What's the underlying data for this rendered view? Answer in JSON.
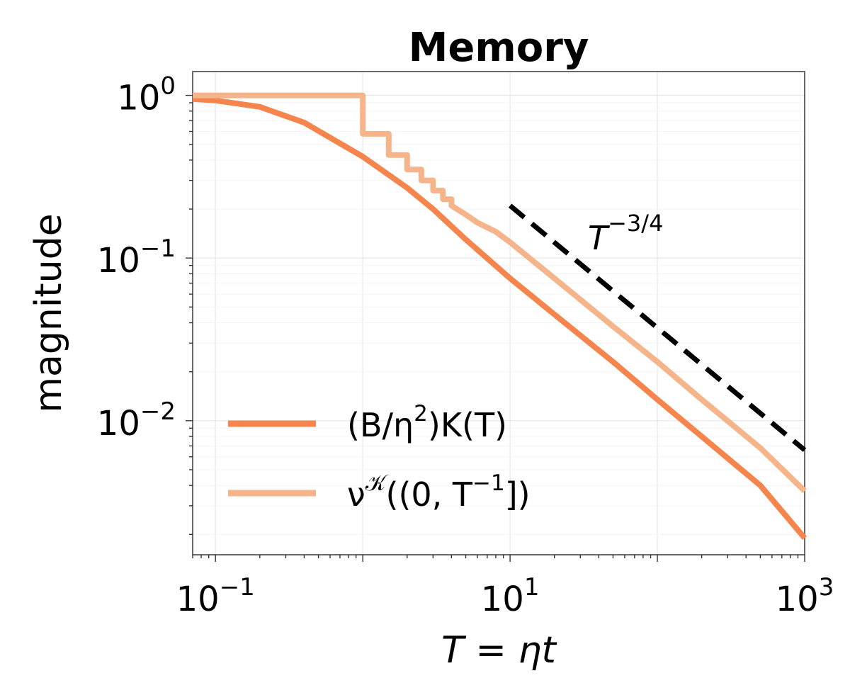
{
  "chart_data": {
    "type": "line",
    "title": "Memory",
    "xlabel": "T = ηt",
    "ylabel": "magnitude",
    "xscale": "log",
    "yscale": "log",
    "xlim": [
      0.07,
      1000
    ],
    "ylim": [
      0.0015,
      1.4
    ],
    "grid": true,
    "legend_position": "lower-left",
    "x_ticks": [
      {
        "base": "10",
        "exp": "−1",
        "value": 0.1
      },
      {
        "base": "10",
        "exp": "1",
        "value": 10
      },
      {
        "base": "10",
        "exp": "3",
        "value": 1000
      }
    ],
    "y_ticks": [
      {
        "base": "10",
        "exp": "0",
        "value": 1
      },
      {
        "base": "10",
        "exp": "−1",
        "value": 0.1
      },
      {
        "base": "10",
        "exp": "−2",
        "value": 0.01
      }
    ],
    "series": [
      {
        "name": "(B/η²)K(T)",
        "legend_main": "(B/η",
        "legend_sup": "2",
        "legend_tail": ")K(T)",
        "color": "#f5854c",
        "points": [
          [
            0.07,
            0.95
          ],
          [
            0.1,
            0.93
          ],
          [
            0.2,
            0.85
          ],
          [
            0.4,
            0.68
          ],
          [
            1,
            0.42
          ],
          [
            2,
            0.27
          ],
          [
            3,
            0.2
          ],
          [
            5,
            0.13
          ],
          [
            10,
            0.075
          ],
          [
            20,
            0.045
          ],
          [
            50,
            0.023
          ],
          [
            100,
            0.0135
          ],
          [
            200,
            0.008
          ],
          [
            500,
            0.004
          ],
          [
            1000,
            0.0019
          ]
        ]
      },
      {
        "name": "ν^𝒦((0, T⁻¹])",
        "legend_main": "ν",
        "legend_sup": "𝒦",
        "legend_tail": "((0, T",
        "legend_sup2": "−1",
        "legend_end": "])",
        "color": "#f5b48a",
        "points": [
          [
            0.07,
            1.0
          ],
          [
            1,
            1.0
          ],
          [
            1,
            0.58
          ],
          [
            1.5,
            0.58
          ],
          [
            1.5,
            0.43
          ],
          [
            2,
            0.43
          ],
          [
            2,
            0.35
          ],
          [
            2.5,
            0.35
          ],
          [
            2.5,
            0.3
          ],
          [
            3,
            0.3
          ],
          [
            3,
            0.26
          ],
          [
            3.5,
            0.26
          ],
          [
            3.5,
            0.23
          ],
          [
            4,
            0.23
          ],
          [
            4,
            0.21
          ],
          [
            5,
            0.185
          ],
          [
            6,
            0.165
          ],
          [
            8,
            0.145
          ],
          [
            10,
            0.125
          ],
          [
            20,
            0.075
          ],
          [
            50,
            0.038
          ],
          [
            100,
            0.023
          ],
          [
            200,
            0.0135
          ],
          [
            500,
            0.0068
          ],
          [
            1000,
            0.0037
          ]
        ]
      }
    ],
    "reference_line": {
      "label_base": "T",
      "label_exp": "−3/4",
      "color": "#000000",
      "style": "dashed",
      "points": [
        [
          10,
          0.21
        ],
        [
          1000,
          0.0066
        ]
      ]
    }
  }
}
